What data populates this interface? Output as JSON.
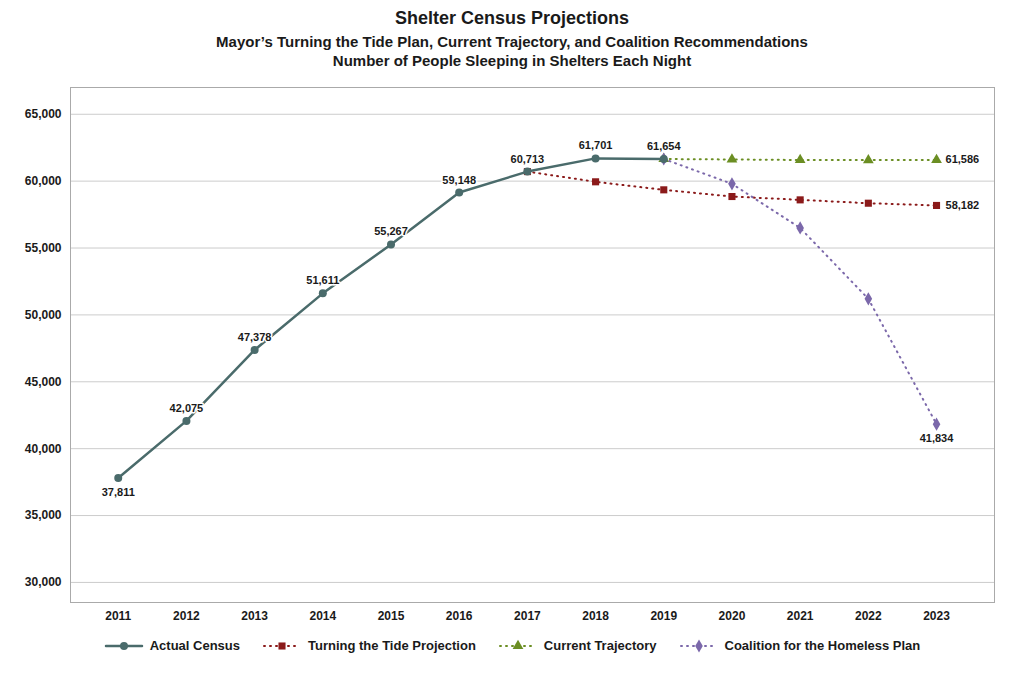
{
  "chart_data": {
    "type": "line",
    "title": "Shelter Census Projections",
    "subtitle": [
      "Mayor’s Turning the Tide Plan, Current Trajectory, and Coalition Recommendations",
      "Number of People Sleeping in Shelters Each Night"
    ],
    "series": [
      {
        "name": "Actual Census",
        "color": "#4a6b6b",
        "marker": "circle",
        "line_style": "solid",
        "x": [
          2011,
          2012,
          2013,
          2014,
          2015,
          2016,
          2017,
          2018,
          2019
        ],
        "values": [
          37811,
          42075,
          47378,
          51611,
          55267,
          59148,
          60713,
          61701,
          61654
        ]
      },
      {
        "name": "Turning the Tide Projection",
        "color": "#8b1a1a",
        "marker": "square",
        "line_style": "dotted",
        "x": [
          2017,
          2018,
          2019,
          2020,
          2021,
          2022,
          2023
        ],
        "values": [
          60713,
          59950,
          59350,
          58850,
          58600,
          58350,
          58182
        ]
      },
      {
        "name": "Current Trajectory",
        "color": "#6b8e23",
        "marker": "triangle",
        "line_style": "dotted",
        "x": [
          2019,
          2020,
          2021,
          2022,
          2023
        ],
        "values": [
          61654,
          61620,
          61580,
          61570,
          61586
        ]
      },
      {
        "name": "Coalition for the Homeless Plan",
        "color": "#7b68aa",
        "marker": "diamond",
        "line_style": "dotted",
        "x": [
          2019,
          2020,
          2021,
          2022,
          2023
        ],
        "values": [
          61654,
          59800,
          56500,
          51200,
          41834
        ]
      }
    ],
    "annotations": [
      {
        "text": "37,811",
        "x": 2011,
        "y": 37811
      },
      {
        "text": "42,075",
        "x": 2012,
        "y": 42075
      },
      {
        "text": "47,378",
        "x": 2013,
        "y": 47378
      },
      {
        "text": "51,611",
        "x": 2014,
        "y": 51611
      },
      {
        "text": "55,267",
        "x": 2015,
        "y": 55267
      },
      {
        "text": "59,148",
        "x": 2016,
        "y": 59148
      },
      {
        "text": "60,713",
        "x": 2017,
        "y": 60713
      },
      {
        "text": "61,701",
        "x": 2018,
        "y": 61701
      },
      {
        "text": "61,654",
        "x": 2019,
        "y": 61654
      },
      {
        "text": "61,586",
        "x": 2023,
        "y": 61586
      },
      {
        "text": "58,182",
        "x": 2023,
        "y": 58182
      },
      {
        "text": "41,834",
        "x": 2023,
        "y": 41834
      }
    ],
    "xlim": [
      2010.3,
      2023.85
    ],
    "xticks": [
      2011,
      2012,
      2013,
      2014,
      2015,
      2016,
      2017,
      2018,
      2019,
      2020,
      2021,
      2022,
      2023
    ],
    "ylim": [
      28500,
      67000
    ],
    "yticks": [
      {
        "value": 30000,
        "label": "30,000"
      },
      {
        "value": 35000,
        "label": "35,000"
      },
      {
        "value": 40000,
        "label": "40,000"
      },
      {
        "value": 45000,
        "label": "45,000"
      },
      {
        "value": 50000,
        "label": "50,000"
      },
      {
        "value": 55000,
        "label": "55,000"
      },
      {
        "value": 60000,
        "label": "60,000"
      },
      {
        "value": 65000,
        "label": "65,000"
      }
    ],
    "grid": true,
    "legend": "bottom"
  }
}
